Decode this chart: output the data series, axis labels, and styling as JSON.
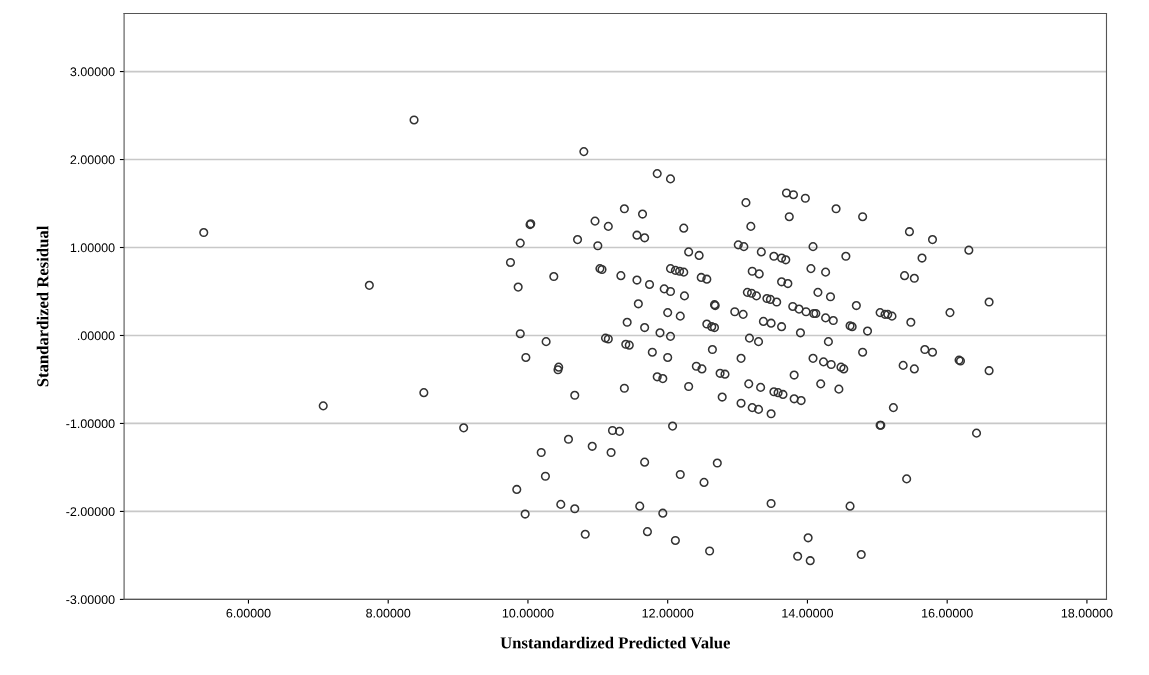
{
  "chart_data": {
    "type": "scatter",
    "xlabel": "Unstandardized Predicted Value",
    "ylabel": "Standardized Residual",
    "xlim": [
      4.22,
      18.28
    ],
    "ylim": [
      -3,
      3.66
    ],
    "xticks": [
      {
        "value": 6,
        "label": "6.00000"
      },
      {
        "value": 8,
        "label": "8.00000"
      },
      {
        "value": 10,
        "label": "10.00000"
      },
      {
        "value": 12,
        "label": "12.00000"
      },
      {
        "value": 14,
        "label": "14.00000"
      },
      {
        "value": 16,
        "label": "16.00000"
      },
      {
        "value": 18,
        "label": "18.00000"
      }
    ],
    "yticks": [
      {
        "value": -3,
        "label": "-3.00000"
      },
      {
        "value": -2,
        "label": "-2.00000"
      },
      {
        "value": -1,
        "label": "-1.00000"
      },
      {
        "value": 0,
        "label": ".00000"
      },
      {
        "value": 1,
        "label": "1.00000"
      },
      {
        "value": 2,
        "label": "2.00000"
      },
      {
        "value": 3,
        "label": "3.00000"
      }
    ],
    "grid": "y",
    "marker": "circle",
    "series": [
      {
        "color": "#333333",
        "x": [
          5.36,
          7.73,
          7.07,
          8.37,
          8.51,
          9.08,
          10.43,
          10.67,
          11.38,
          11.85,
          11.93,
          11.21,
          11.31,
          12.07,
          10.58,
          10.19,
          10.92,
          11.19,
          11.67,
          10.25,
          9.84,
          12.18,
          10.47,
          10.67,
          9.96,
          11.6,
          11.93,
          10.82,
          11.71,
          12.11,
          10.8,
          11.85,
          12.04,
          11.38,
          11.64,
          10.03,
          10.04,
          10.96,
          11.15,
          11.56,
          11.67,
          12.23,
          9.89,
          10.71,
          11.0,
          9.75,
          10.37,
          9.86,
          11.03,
          11.06,
          11.33,
          11.56,
          11.74,
          11.95,
          12.04,
          12.04,
          12.11,
          12.17,
          12.23,
          12.24,
          11.58,
          12.0,
          12.18,
          11.42,
          11.67,
          11.89,
          12.04,
          9.89,
          10.26,
          11.11,
          11.15,
          11.4,
          11.45,
          9.97,
          10.44,
          11.78,
          12.0,
          13.12,
          13.7,
          13.8,
          13.97,
          14.41,
          13.74,
          13.19,
          13.01,
          13.09,
          14.08,
          12.3,
          12.45,
          13.34,
          13.52,
          13.63,
          13.69,
          14.55,
          14.05,
          14.26,
          12.48,
          12.56,
          13.21,
          13.31,
          13.63,
          13.72,
          14.15,
          14.33,
          13.14,
          13.2,
          13.27,
          13.42,
          13.47,
          13.56,
          12.67,
          12.68,
          13.79,
          13.88,
          13.98,
          14.09,
          14.12,
          14.26,
          14.37,
          12.96,
          13.08,
          12.56,
          12.63,
          12.67,
          13.37,
          13.48,
          13.63,
          14.61,
          13.9,
          13.17,
          13.3,
          14.3,
          12.64,
          13.05,
          14.08,
          14.23,
          14.34,
          14.48,
          14.52,
          12.41,
          12.49,
          12.75,
          12.82,
          13.81,
          12.3,
          12.78,
          13.16,
          13.33,
          13.05,
          13.21,
          13.3,
          13.48,
          13.52,
          13.58,
          13.65,
          13.81,
          13.91,
          14.19,
          14.45,
          12.52,
          12.71,
          13.48,
          14.61,
          14.01,
          12.6,
          13.86,
          14.04,
          14.79,
          15.46,
          15.79,
          16.31,
          15.64,
          15.39,
          15.53,
          14.7,
          15.04,
          15.11,
          15.15,
          15.21,
          16.04,
          16.6,
          15.48,
          14.64,
          14.86,
          14.79,
          15.68,
          15.79,
          15.37,
          15.53,
          16.17,
          16.19,
          16.6,
          15.23,
          15.04,
          15.05,
          16.42,
          15.42,
          14.77
        ],
        "values": [
          1.17,
          0.57,
          -0.8,
          2.45,
          -0.65,
          -1.05,
          -0.39,
          -0.68,
          -0.6,
          -0.47,
          -0.49,
          -1.08,
          -1.09,
          -1.03,
          -1.18,
          -1.33,
          -1.26,
          -1.33,
          -1.44,
          -1.6,
          -1.75,
          -1.58,
          -1.92,
          -1.97,
          -2.03,
          -1.94,
          -2.02,
          -2.26,
          -2.23,
          -2.33,
          2.09,
          1.84,
          1.78,
          1.44,
          1.38,
          1.26,
          1.27,
          1.3,
          1.24,
          1.14,
          1.11,
          1.22,
          1.05,
          1.09,
          1.02,
          0.83,
          0.67,
          0.55,
          0.76,
          0.75,
          0.68,
          0.63,
          0.58,
          0.53,
          0.5,
          0.76,
          0.74,
          0.73,
          0.72,
          0.45,
          0.36,
          0.26,
          0.22,
          0.15,
          0.09,
          0.03,
          -0.01,
          0.02,
          -0.07,
          -0.03,
          -0.04,
          -0.1,
          -0.11,
          -0.25,
          -0.36,
          -0.19,
          -0.25,
          1.51,
          1.62,
          1.6,
          1.56,
          1.44,
          1.35,
          1.24,
          1.03,
          1.01,
          1.01,
          0.95,
          0.91,
          0.95,
          0.9,
          0.88,
          0.86,
          0.9,
          0.76,
          0.72,
          0.66,
          0.64,
          0.73,
          0.7,
          0.61,
          0.59,
          0.49,
          0.44,
          0.49,
          0.48,
          0.45,
          0.42,
          0.41,
          0.38,
          0.35,
          0.34,
          0.33,
          0.3,
          0.27,
          0.25,
          0.25,
          0.2,
          0.17,
          0.27,
          0.24,
          0.13,
          0.1,
          0.09,
          0.16,
          0.14,
          0.1,
          0.11,
          0.03,
          -0.03,
          -0.07,
          -0.07,
          -0.16,
          -0.26,
          -0.26,
          -0.3,
          -0.33,
          -0.36,
          -0.38,
          -0.35,
          -0.38,
          -0.43,
          -0.44,
          -0.45,
          -0.58,
          -0.7,
          -0.55,
          -0.59,
          -0.77,
          -0.82,
          -0.84,
          -0.89,
          -0.64,
          -0.65,
          -0.67,
          -0.72,
          -0.74,
          -0.55,
          -0.61,
          -1.67,
          -1.45,
          -1.91,
          -1.94,
          -2.3,
          -2.45,
          -2.51,
          -2.56,
          1.35,
          1.18,
          1.09,
          0.97,
          0.88,
          0.68,
          0.65,
          0.34,
          0.26,
          0.24,
          0.24,
          0.22,
          0.26,
          0.38,
          0.15,
          0.1,
          0.05,
          -0.19,
          -0.16,
          -0.19,
          -0.34,
          -0.38,
          -0.28,
          -0.29,
          -0.4,
          -0.82,
          -1.02,
          -1.02,
          -1.11,
          -1.63,
          -2.49
        ]
      }
    ]
  }
}
